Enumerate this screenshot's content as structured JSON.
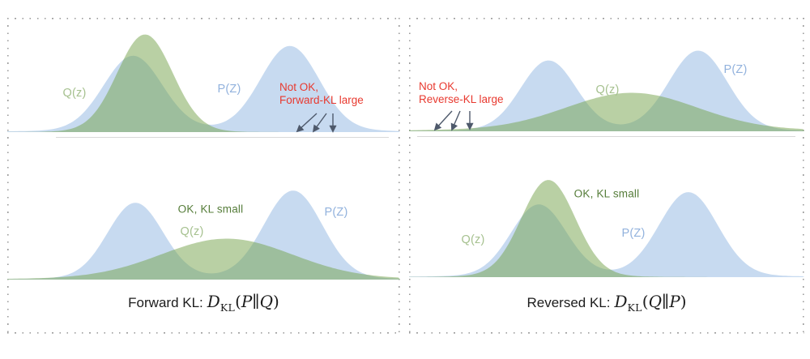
{
  "colors": {
    "blue": "#c7daf0",
    "green": "rgba(115,161,73,0.5)",
    "green_label": "#a6c18f",
    "green_dark": "#567d3a",
    "blue_label": "#92b2dd",
    "red": "#e8392f",
    "arrow": "#4e596b",
    "axis": "#d8d8d8",
    "border_dot": "#9b9b9b"
  },
  "panels": [
    {
      "caption": {
        "prefix": "Forward KL:",
        "d": "D",
        "sub": "KL",
        "open": "(",
        "arg1": "P",
        "bar": "∥",
        "arg2": "Q",
        "close": ")"
      },
      "labels": {
        "q_top": "Q(z)",
        "p_top": "P(Z)",
        "warn_line1": "Not OK,",
        "warn_line2": "Forward-KL large",
        "ok": "OK, KL small",
        "q_bottom": "Q(z)",
        "p_bottom": "P(Z)"
      },
      "plots": [
        {
          "baseline": 141,
          "axis": [
            60,
            471
          ],
          "curves": [
            {
              "color": "blue",
              "components": [
                [
                  155,
                  36,
                  91
                ],
                [
                  349,
                  36,
                  103
                ],
                [
                  255,
                  150,
                  4
                ]
              ]
            },
            {
              "color": "green",
              "components": [
                [
                  170,
                  34,
                  118
                ],
                [
                  165,
                  60,
                  2.5
                ]
              ]
            }
          ],
          "arrows": [
            [
              382,
              118,
              358,
              140
            ],
            [
              394,
              118,
              378,
              140
            ],
            [
              402,
              118,
              402,
              140
            ]
          ]
        },
        {
          "baseline": 323,
          "curves": [
            {
              "color": "blue",
              "components": [
                [
                  158,
                  34,
                  92
                ],
                [
                  353,
                  36,
                  107
                ],
                [
                  258,
                  150,
                  3.5
                ]
              ]
            },
            {
              "color": "green",
              "components": [
                [
                  271,
                  80,
                  48
                ],
                [
                  262,
                  170,
                  2.5
                ]
              ]
            }
          ]
        }
      ]
    },
    {
      "caption": {
        "prefix": "Reversed KL:",
        "d": "D",
        "sub": "KL",
        "open": "(",
        "arg1": "Q",
        "bar": "∥",
        "arg2": "P",
        "close": ")"
      },
      "labels": {
        "q_top": "Q(z)",
        "p_top": "P(Z)",
        "warn_line1": "Not OK,",
        "warn_line2": "Reverse-KL large",
        "ok": "OK, KL small",
        "q_bottom": "Q(z)",
        "p_bottom": "P(Z)"
      },
      "plots": [
        {
          "baseline": 140,
          "axis": [
            10,
            477
          ],
          "curves": [
            {
              "color": "blue",
              "components": [
                [
                  172,
                  34,
                  85
                ],
                [
                  357,
                  36,
                  97
                ],
                [
                  265,
                  150,
                  3
                ]
              ]
            },
            {
              "color": "green",
              "components": [
                [
                  275,
                  80,
                  45
                ],
                [
                  262,
                  215,
                  2.5
                ]
              ]
            }
          ],
          "arrows": [
            [
              53,
              115,
              32,
              138
            ],
            [
              63,
              115,
              53,
              138
            ],
            [
              75,
              115,
              75,
              137
            ]
          ]
        },
        {
          "baseline": 320,
          "curves": [
            {
              "color": "blue",
              "components": [
                [
                  160,
                  34,
                  87
                ],
                [
                  345,
                  36,
                  102
                ],
                [
                  258,
                  145,
                  3.5
                ]
              ]
            },
            {
              "color": "green",
              "components": [
                [
                  172,
                  33,
                  117
                ],
                [
                  168,
                  70,
                  3
                ]
              ]
            }
          ]
        }
      ]
    }
  ]
}
